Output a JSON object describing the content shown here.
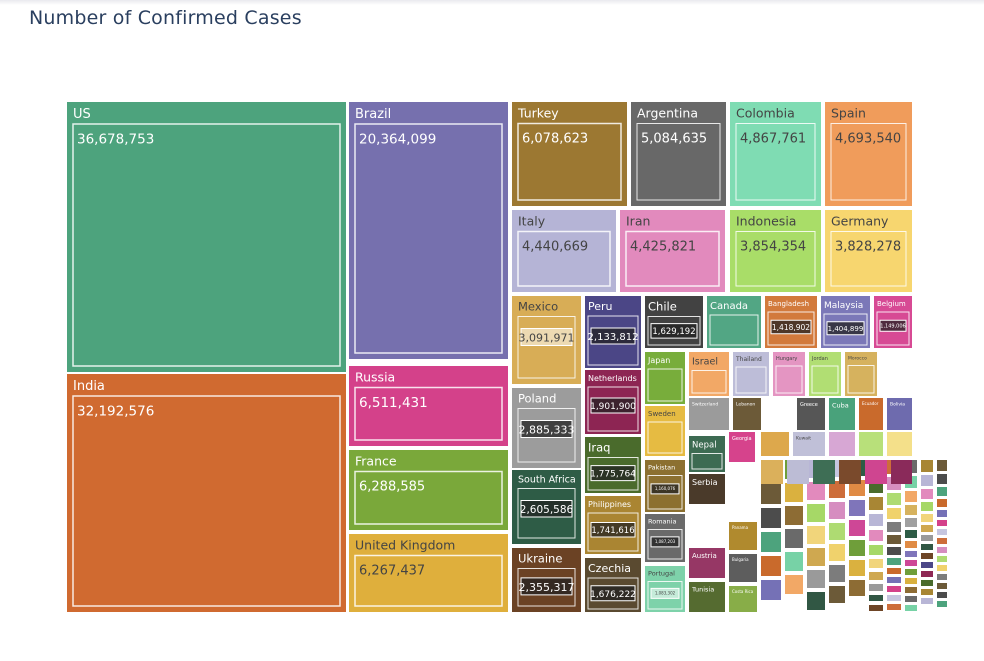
{
  "title": "Number of Confirmed Cases",
  "chart_data": {
    "type": "treemap",
    "title": "Number of Confirmed Cases",
    "value_label_style": "boxed",
    "countries": [
      {
        "name": "US",
        "value": "36,678,753",
        "color": "#4da37d"
      },
      {
        "name": "India",
        "value": "32,192,576",
        "color": "#d06a30"
      },
      {
        "name": "Brazil",
        "value": "20,364,099",
        "color": "#7670ae"
      },
      {
        "name": "Russia",
        "value": "6,511,431",
        "color": "#d4418a"
      },
      {
        "name": "France",
        "value": "6,288,585",
        "color": "#7aa83a"
      },
      {
        "name": "United Kingdom",
        "value": "6,267,437",
        "color": "#dfaf3c"
      },
      {
        "name": "Turkey",
        "value": "6,078,623",
        "color": "#9c7832"
      },
      {
        "name": "Argentina",
        "value": "5,084,635",
        "color": "#686868"
      },
      {
        "name": "Colombia",
        "value": "4,867,761",
        "color": "#7fdcb3"
      },
      {
        "name": "Spain",
        "value": "4,693,540",
        "color": "#f09c5b"
      },
      {
        "name": "Italy",
        "value": "4,440,669",
        "color": "#b5b4d6"
      },
      {
        "name": "Iran",
        "value": "4,425,821",
        "color": "#e28abd"
      },
      {
        "name": "Indonesia",
        "value": "3,854,354",
        "color": "#a9dd68"
      },
      {
        "name": "Germany",
        "value": "3,828,278",
        "color": "#f7d66f"
      },
      {
        "name": "Mexico",
        "value": "3,091,971",
        "color": "#d8ad56"
      },
      {
        "name": "Poland",
        "value": "2,885,333",
        "color": "#9c9c9c"
      },
      {
        "name": "South Africa",
        "value": "2,605,586",
        "color": "#2e5c46"
      },
      {
        "name": "Ukraine",
        "value": "2,355,317",
        "color": "#6b4224"
      },
      {
        "name": "Peru",
        "value": "2,133,812",
        "color": "#4b4686"
      },
      {
        "name": "Netherlands",
        "value": "1,901,900",
        "color": "#8d2553"
      },
      {
        "name": "Iraq",
        "value": "1,775,764",
        "color": "#4a6b2c"
      },
      {
        "name": "Philippines",
        "value": "1,741,616",
        "color": "#aa8532"
      },
      {
        "name": "Czechia",
        "value": "1,676,222",
        "color": "#5a4a30"
      },
      {
        "name": "Chile",
        "value": "1,629,192",
        "color": "#424242"
      },
      {
        "name": "Canada",
        "value": "",
        "color": "#52a684"
      },
      {
        "name": "Bangladesh",
        "value": "1,418,902",
        "color": "#d27a3c"
      },
      {
        "name": "Malaysia",
        "value": "1,404,899",
        "color": "#7b78b8"
      },
      {
        "name": "Belgium",
        "value": "1,149,006",
        "color": "#d74a94"
      },
      {
        "name": "Japan",
        "value": "",
        "color": "#78ad3b"
      },
      {
        "name": "Israel",
        "value": "",
        "color": "#f2a866"
      },
      {
        "name": "Thailand",
        "value": "",
        "color": "#bdbdd8"
      },
      {
        "name": "Hungary",
        "value": "",
        "color": "#e495c2"
      },
      {
        "name": "Jordan",
        "value": "",
        "color": "#b1de73"
      },
      {
        "name": "Morocco",
        "value": "",
        "color": "#d6b25e"
      },
      {
        "name": "Sweden",
        "value": "",
        "color": "#e6bb42"
      },
      {
        "name": "Switzerland",
        "value": "",
        "color": "#9b9b9b"
      },
      {
        "name": "Lebanon",
        "value": "",
        "color": "#6c5a38"
      },
      {
        "name": "Nepal",
        "value": "",
        "color": "#3d6b52"
      },
      {
        "name": "Greece",
        "value": "",
        "color": "#565656"
      },
      {
        "name": "Cuba",
        "value": "",
        "color": "#49a27b"
      },
      {
        "name": "Ecuador",
        "value": "",
        "color": "#c96a2c"
      },
      {
        "name": "Bolivia",
        "value": "",
        "color": "#6e6bae"
      },
      {
        "name": "Georgia",
        "value": "",
        "color": "#d6438c"
      },
      {
        "name": "Kuwait",
        "value": "",
        "color": "#c0c0d8"
      },
      {
        "name": "Pakistan",
        "value": "1,160,076",
        "color": "#8c7030"
      },
      {
        "name": "Serbia",
        "value": "",
        "color": "#4a3a2a"
      },
      {
        "name": "Romania",
        "value": "1,087,203",
        "color": "#6a6a6a"
      },
      {
        "name": "Austria",
        "value": "",
        "color": "#963765"
      },
      {
        "name": "Portugal",
        "value": "1,083,302",
        "color": "#7ed2aa"
      },
      {
        "name": "Tunisia",
        "value": "",
        "color": "#556b30"
      },
      {
        "name": "Panama",
        "value": "",
        "color": "#b08a2e"
      },
      {
        "name": "Bulgaria",
        "value": "",
        "color": "#5d5d5d"
      },
      {
        "name": "Costa Rica",
        "value": "",
        "color": "#88ad48"
      }
    ]
  }
}
